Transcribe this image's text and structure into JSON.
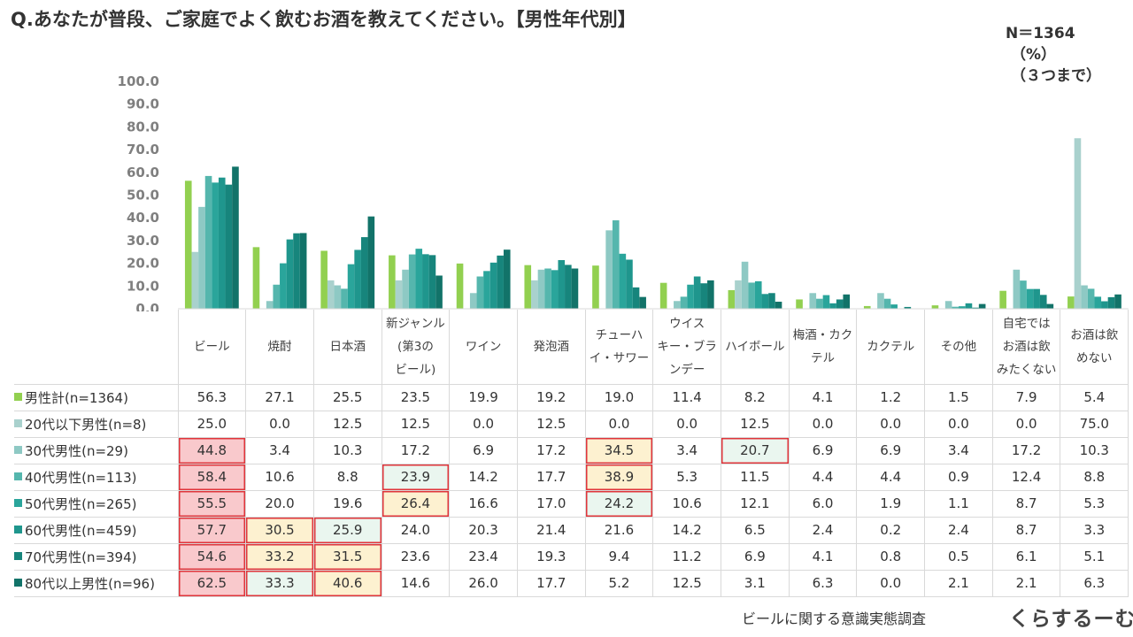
{
  "title": "Q.あなたが普段、ご家庭でよく飲むお酒を教えてください。【男性年代別】",
  "meta": {
    "n": "N＝1364",
    "unit": "（%）",
    "note": "（３つまで）"
  },
  "source": "ビールに関する意識実態調査",
  "logo_text": "くらするーむ",
  "colors": [
    "#92d050",
    "#a9d1cd",
    "#8ec9c4",
    "#55b6ad",
    "#2aa59b",
    "#1f968d",
    "#17857c",
    "#127369"
  ],
  "chart_data": {
    "type": "bar",
    "title": "Q.あなたが普段、ご家庭でよく飲むお酒を教えてください。【男性年代別】",
    "ylim": [
      0,
      100
    ],
    "yticks": [
      "100.0",
      "90.0",
      "80.0",
      "70.0",
      "60.0",
      "50.0",
      "40.0",
      "30.0",
      "20.0",
      "10.0",
      "0.0"
    ],
    "categories": [
      [
        "ビール"
      ],
      [
        "焼酎"
      ],
      [
        "日本酒"
      ],
      [
        "新ジャンル",
        "(第3の",
        "ビール)"
      ],
      [
        "ワイン"
      ],
      [
        "発泡酒"
      ],
      [
        "チューハ",
        "イ・サワー"
      ],
      [
        "ウイス",
        "キー・ブラ",
        "ンデー"
      ],
      [
        "ハイボール"
      ],
      [
        "梅酒・カク",
        "テル"
      ],
      [
        "カクテル"
      ],
      [
        "その他"
      ],
      [
        "自宅では",
        "お酒は飲",
        "みたくない"
      ],
      [
        "お酒は飲",
        "めない"
      ]
    ],
    "series": [
      {
        "name": "男性計(n=1364)",
        "values": [
          56.3,
          27.1,
          25.5,
          23.5,
          19.9,
          19.2,
          19.0,
          11.4,
          8.2,
          4.1,
          1.2,
          1.5,
          7.9,
          5.4
        ]
      },
      {
        "name": "20代以下男性(n=8)",
        "values": [
          25.0,
          0.0,
          12.5,
          12.5,
          0.0,
          12.5,
          0.0,
          0.0,
          12.5,
          0.0,
          0.0,
          0.0,
          0.0,
          75.0
        ]
      },
      {
        "name": "30代男性(n=29)",
        "values": [
          44.8,
          3.4,
          10.3,
          17.2,
          6.9,
          17.2,
          34.5,
          3.4,
          20.7,
          6.9,
          6.9,
          3.4,
          17.2,
          10.3
        ]
      },
      {
        "name": "40代男性(n=113)",
        "values": [
          58.4,
          10.6,
          8.8,
          23.9,
          14.2,
          17.7,
          38.9,
          5.3,
          11.5,
          4.4,
          4.4,
          0.9,
          12.4,
          8.8
        ]
      },
      {
        "name": "50代男性(n=265)",
        "values": [
          55.5,
          20.0,
          19.6,
          26.4,
          16.6,
          17.0,
          24.2,
          10.6,
          12.1,
          6.0,
          1.9,
          1.1,
          8.7,
          5.3
        ]
      },
      {
        "name": "60代男性(n=459)",
        "values": [
          57.7,
          30.5,
          25.9,
          24.0,
          20.3,
          21.4,
          21.6,
          14.2,
          6.5,
          2.4,
          0.2,
          2.4,
          8.7,
          3.3
        ]
      },
      {
        "name": "70代男性(n=394)",
        "values": [
          54.6,
          33.2,
          31.5,
          23.6,
          23.4,
          19.3,
          9.4,
          11.2,
          6.9,
          4.1,
          0.8,
          0.5,
          6.1,
          5.1
        ]
      },
      {
        "name": "80代以上男性(n=96)",
        "values": [
          62.5,
          33.3,
          40.6,
          14.6,
          26.0,
          17.7,
          5.2,
          12.5,
          3.1,
          6.3,
          0.0,
          2.1,
          2.1,
          6.3
        ]
      }
    ],
    "highlights": [
      {
        "series": 2,
        "category": 0,
        "style": "red"
      },
      {
        "series": 3,
        "category": 0,
        "style": "red"
      },
      {
        "series": 4,
        "category": 0,
        "style": "red"
      },
      {
        "series": 5,
        "category": 0,
        "style": "red"
      },
      {
        "series": 6,
        "category": 0,
        "style": "red"
      },
      {
        "series": 7,
        "category": 0,
        "style": "red"
      },
      {
        "series": 5,
        "category": 1,
        "style": "yellow"
      },
      {
        "series": 6,
        "category": 1,
        "style": "yellow"
      },
      {
        "series": 7,
        "category": 1,
        "style": "green"
      },
      {
        "series": 5,
        "category": 2,
        "style": "green"
      },
      {
        "series": 6,
        "category": 2,
        "style": "yellow"
      },
      {
        "series": 7,
        "category": 2,
        "style": "yellow"
      },
      {
        "series": 3,
        "category": 3,
        "style": "green"
      },
      {
        "series": 4,
        "category": 3,
        "style": "yellow"
      },
      {
        "series": 2,
        "category": 6,
        "style": "yellow"
      },
      {
        "series": 3,
        "category": 6,
        "style": "yellow"
      },
      {
        "series": 4,
        "category": 6,
        "style": "green"
      },
      {
        "series": 2,
        "category": 8,
        "style": "green"
      }
    ]
  }
}
